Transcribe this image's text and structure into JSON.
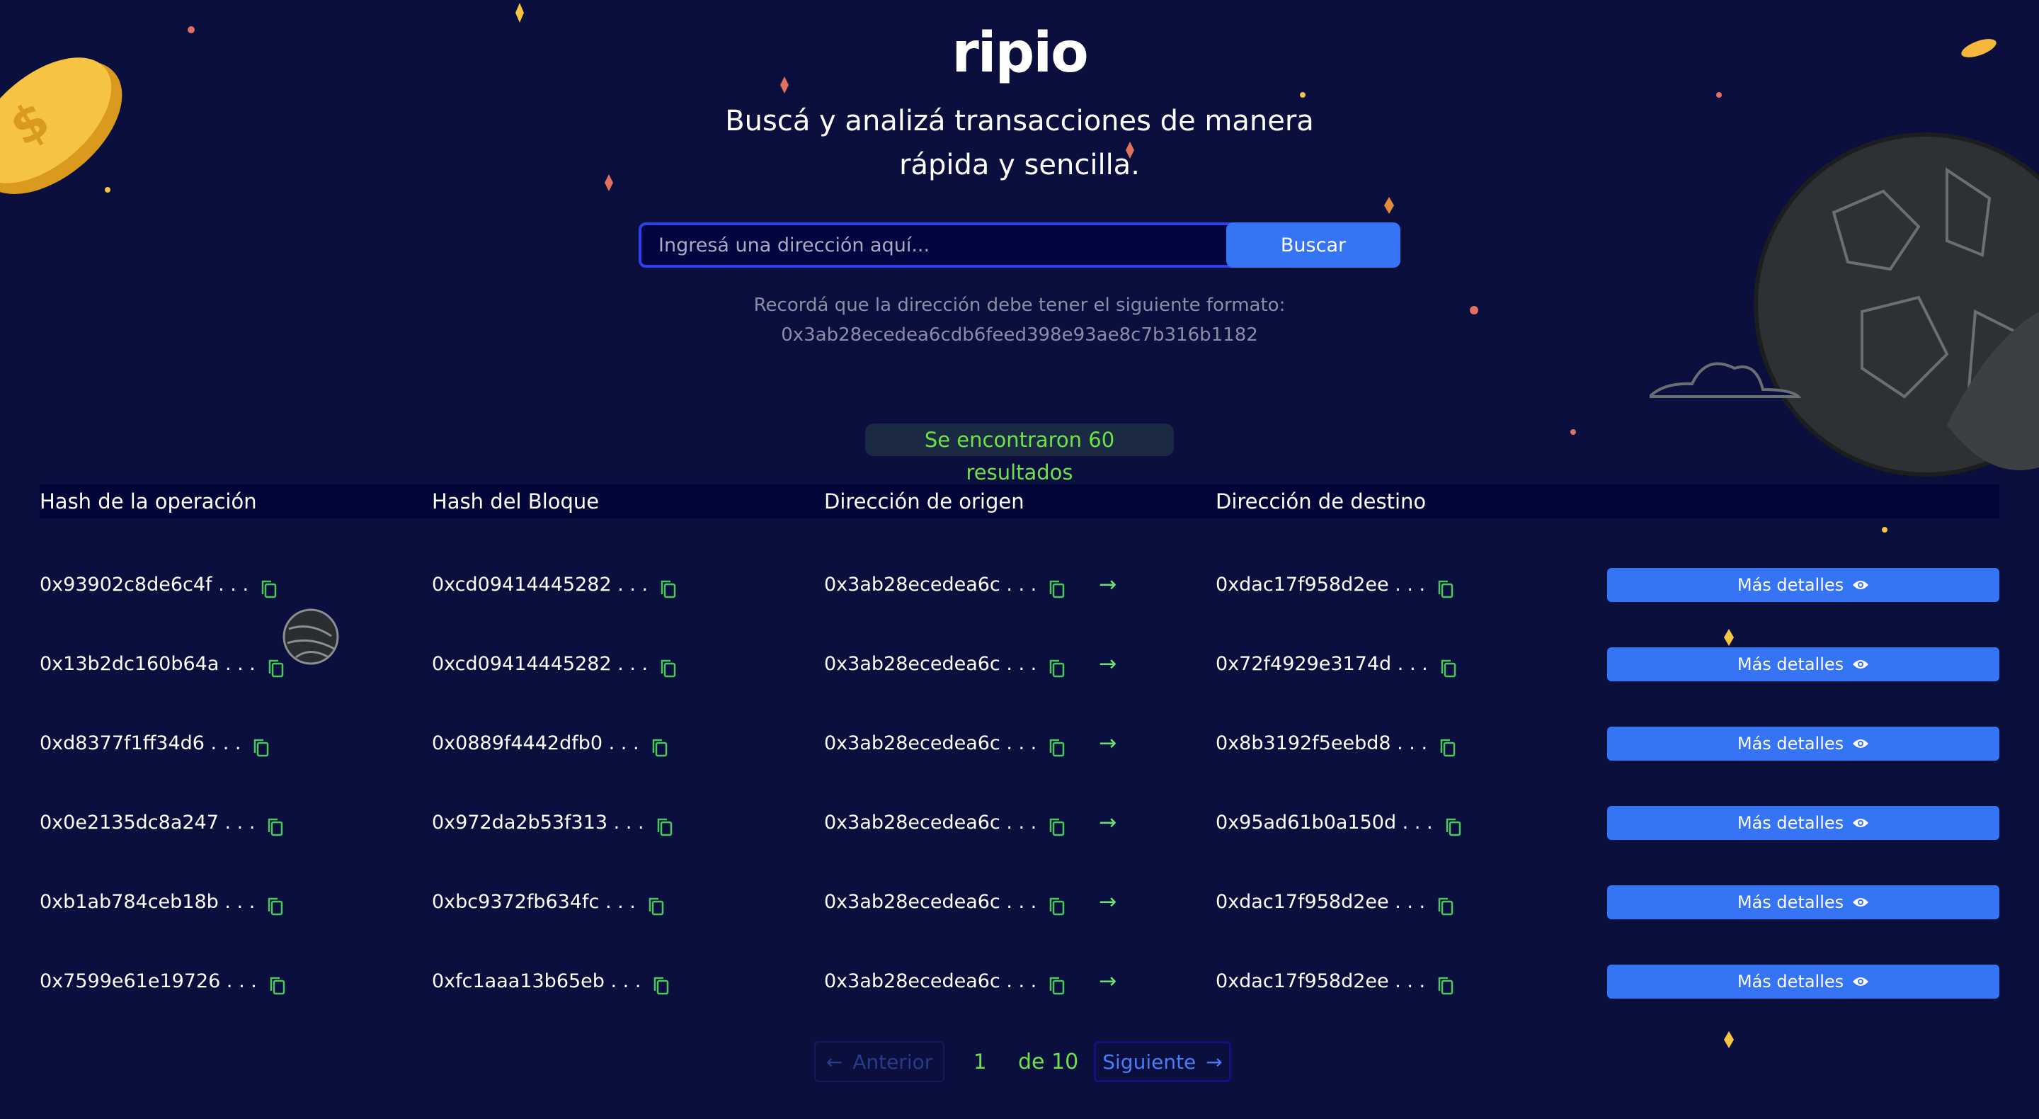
{
  "header": {
    "logo": "ripio",
    "subtitle_line1": "Buscá y analizá transacciones de manera",
    "subtitle_line2": "rápida y sencilla."
  },
  "search": {
    "placeholder": "Ingresá una dirección aquí...",
    "value": "",
    "button_label": "Buscar",
    "hint_line1": "Recordá que la dirección debe tener el siguiente formato:",
    "hint_line2": "0x3ab28ecedea6cdb6feed398e93ae8c7b316b1182"
  },
  "results": {
    "count_label": "Se encontraron 60 resultados"
  },
  "table": {
    "columns": [
      "Hash de la operación",
      "Hash del Bloque",
      "Dirección de origen",
      "Dirección de destino"
    ],
    "details_label": "Más detalles",
    "rows": [
      {
        "op": "0x93902c8de6c4f . . .",
        "block": "0xcd09414445282 . . .",
        "from": "0x3ab28ecedea6c . . .",
        "to": "0xdac17f958d2ee . . ."
      },
      {
        "op": "0x13b2dc160b64a . . .",
        "block": "0xcd09414445282 . . .",
        "from": "0x3ab28ecedea6c . . .",
        "to": "0x72f4929e3174d . . ."
      },
      {
        "op": "0xd8377f1ff34d6 . . .",
        "block": "0x0889f4442dfb0 . . .",
        "from": "0x3ab28ecedea6c . . .",
        "to": "0x8b3192f5eebd8 . . ."
      },
      {
        "op": "0x0e2135dc8a247 . . .",
        "block": "0x972da2b53f313 . . .",
        "from": "0x3ab28ecedea6c . . .",
        "to": "0x95ad61b0a150d . . ."
      },
      {
        "op": "0xb1ab784ceb18b . . .",
        "block": "0xbc9372fb634fc . . .",
        "from": "0x3ab28ecedea6c . . .",
        "to": "0xdac17f958d2ee . . ."
      },
      {
        "op": "0x7599e61e19726 . . .",
        "block": "0xfc1aaa13b65eb . . .",
        "from": "0x3ab28ecedea6c . . .",
        "to": "0xdac17f958d2ee . . ."
      }
    ]
  },
  "pagination": {
    "prev_label": "Anterior",
    "current_page": "1",
    "total_label": "de 10",
    "next_label": "Siguiente"
  },
  "colors": {
    "background": "#0a0f3e",
    "accent_blue": "#3574f5",
    "success_green": "#6be24a",
    "icon_green": "#4cc85a"
  },
  "icons": {
    "copy": "copy-icon",
    "arrow": "arrow-right-icon",
    "eye": "eye-icon"
  }
}
